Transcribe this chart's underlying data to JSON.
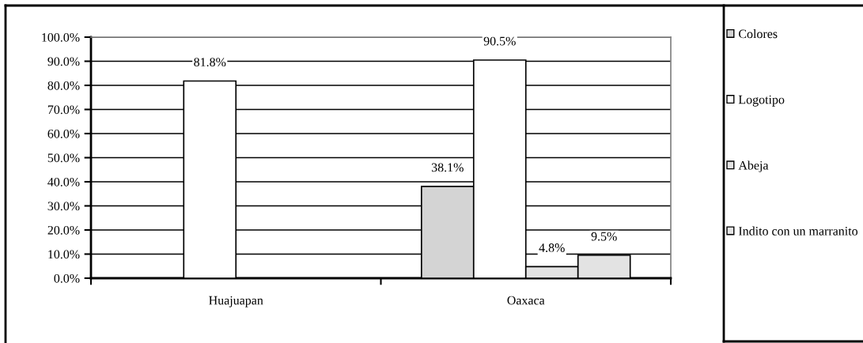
{
  "chart_data": {
    "type": "bar",
    "categories": [
      "Huajuapan",
      "Oaxaca"
    ],
    "series": [
      {
        "name": "Colores",
        "color": "#d4d4d4",
        "values": [
          null,
          38.1
        ],
        "value_labels": [
          null,
          "38.1%"
        ]
      },
      {
        "name": "Logotipo",
        "color": "#ffffff",
        "values": [
          81.8,
          90.5
        ],
        "value_labels": [
          "81.8%",
          "90.5%"
        ]
      },
      {
        "name": "Abeja",
        "color": "#e3e3e3",
        "values": [
          null,
          4.8
        ],
        "value_labels": [
          null,
          "4.8%"
        ]
      },
      {
        "name": "Indito con un marranito",
        "color": "#e3e3e3",
        "values": [
          null,
          9.5
        ],
        "value_labels": [
          null,
          "9.5%"
        ]
      }
    ],
    "ylim": [
      0,
      100
    ],
    "yticks": [
      {
        "value": 0,
        "label": "0.0%"
      },
      {
        "value": 10,
        "label": "10.0%"
      },
      {
        "value": 20,
        "label": "20.0%"
      },
      {
        "value": 30,
        "label": "30.0%"
      },
      {
        "value": 40,
        "label": "40.0%"
      },
      {
        "value": 50,
        "label": "50.0%"
      },
      {
        "value": 60,
        "label": "60.0%"
      },
      {
        "value": 70,
        "label": "70.0%"
      },
      {
        "value": 80,
        "label": "80.0%"
      },
      {
        "value": 90,
        "label": "90.0%"
      },
      {
        "value": 100,
        "label": "100.0%"
      }
    ],
    "grid": "y",
    "legend": "right"
  }
}
